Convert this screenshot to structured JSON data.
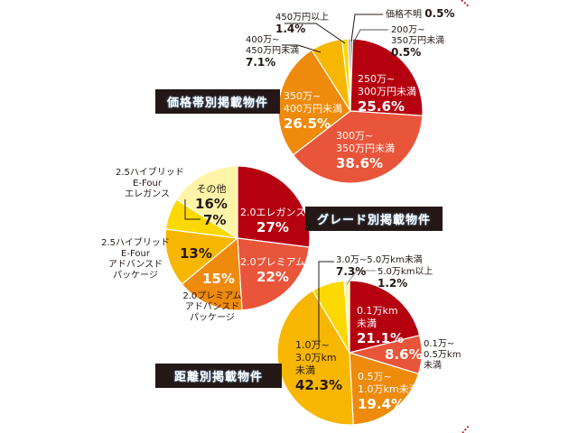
{
  "colors": {
    "dark_red": "#b5000f",
    "red_orange": "#e9553a",
    "orange": "#ee8a0c",
    "amber": "#f7b600",
    "yellow": "#fbd800",
    "pale_yellow": "#fff4a8",
    "gray": "#6b6b6b",
    "title_bg": "#231815",
    "accent_dash": "#c0272d"
  },
  "chart_data": [
    {
      "type": "pie",
      "title": "価格帯別掲載物件",
      "slices": [
        {
          "label_lines": [
            "200万~",
            "350万円未満"
          ],
          "value": 0.5,
          "pct": "0.5%",
          "color": "#5a5a5a"
        },
        {
          "label_lines": [
            "250万~",
            "300万円未満"
          ],
          "value": 25.6,
          "pct": "25.6%",
          "color": "#b5000f"
        },
        {
          "label_lines": [
            "300万~",
            "350万円未満"
          ],
          "value": 38.6,
          "pct": "38.6%",
          "color": "#e9553a"
        },
        {
          "label_lines": [
            "350万~",
            "400万円未満"
          ],
          "value": 26.5,
          "pct": "26.5%",
          "color": "#ee8a0c"
        },
        {
          "label_lines": [
            "400万~",
            "450万円未満"
          ],
          "value": 7.1,
          "pct": "7.1%",
          "color": "#f7b600"
        },
        {
          "label_lines": [
            "450万円以上"
          ],
          "value": 1.4,
          "pct": "1.4%",
          "color": "#fbd800"
        },
        {
          "label_lines": [
            "価格不明"
          ],
          "value": 0.5,
          "pct": "0.5%",
          "color": "#8a8a8a"
        }
      ]
    },
    {
      "type": "pie",
      "title": "グレード別掲載物件",
      "slices": [
        {
          "label_lines": [
            "2.0エレガンス"
          ],
          "value": 27,
          "pct": "27%",
          "color": "#b5000f"
        },
        {
          "label_lines": [
            "2.0プレミアム"
          ],
          "value": 22,
          "pct": "22%",
          "color": "#e9553a"
        },
        {
          "label_lines": [
            "2.0プレミアム",
            "アドバンスド",
            "パッケージ"
          ],
          "value": 15,
          "pct": "15%",
          "color": "#ee8a0c"
        },
        {
          "label_lines": [
            "2.5ハイブリッド",
            "E-Four",
            "アドバンスド",
            "パッケージ"
          ],
          "value": 13,
          "pct": "13%",
          "color": "#f7b600"
        },
        {
          "label_lines": [
            "2.5ハイブリッド",
            "E-Four",
            "エレガンス"
          ],
          "value": 7,
          "pct": "7%",
          "color": "#fbd800"
        },
        {
          "label_lines": [
            "その他"
          ],
          "value": 16,
          "pct": "16%",
          "color": "#fff4a8"
        }
      ]
    },
    {
      "type": "pie",
      "title": "距離別掲載物件",
      "slices": [
        {
          "label_lines": [
            "0.1万km",
            "未満"
          ],
          "value": 21.1,
          "pct": "21.1%",
          "color": "#b5000f"
        },
        {
          "label_lines": [
            "0.1万~",
            "0.5万km",
            "未満"
          ],
          "value": 8.6,
          "pct": "8.6%",
          "color": "#e9553a"
        },
        {
          "label_lines": [
            "0.5万~",
            "1.0万km未満"
          ],
          "value": 19.4,
          "pct": "19.4%",
          "color": "#ee8a0c"
        },
        {
          "label_lines": [
            "1.0万~",
            "3.0万km",
            "未満"
          ],
          "value": 42.3,
          "pct": "42.3%",
          "color": "#f7b600"
        },
        {
          "label_lines": [
            "3.0万~5.0万km未満"
          ],
          "value": 7.3,
          "pct": "7.3%",
          "color": "#fbd800"
        },
        {
          "label_lines": [
            "5.0万km以上"
          ],
          "value": 1.2,
          "pct": "1.2%",
          "color": "#fff4a8"
        }
      ]
    }
  ]
}
